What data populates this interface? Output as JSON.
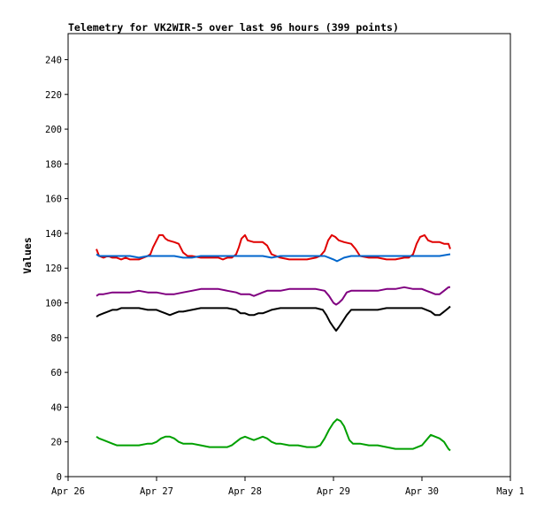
{
  "chart_data": {
    "type": "line",
    "title": "Telemetry for VK2WIR-5 over last 96 hours (399 points)",
    "xlabel": "",
    "ylabel": "Values",
    "xlim": [
      0,
      5
    ],
    "ylim": [
      0,
      255
    ],
    "x_ticks": [
      {
        "label": "Apr 26",
        "value": 0
      },
      {
        "label": "Apr 27",
        "value": 1
      },
      {
        "label": "Apr 28",
        "value": 2
      },
      {
        "label": "Apr 29",
        "value": 3
      },
      {
        "label": "Apr 30",
        "value": 4
      },
      {
        "label": "May 1",
        "value": 5
      }
    ],
    "y_ticks": [
      0,
      20,
      40,
      60,
      80,
      100,
      120,
      140,
      160,
      180,
      200,
      220,
      240
    ],
    "grid": false,
    "x_unit": "days since Apr 26 00:00",
    "series": [
      {
        "color": "#e00000",
        "points": [
          [
            0.32,
            131
          ],
          [
            0.35,
            127
          ],
          [
            0.4,
            126
          ],
          [
            0.45,
            127
          ],
          [
            0.5,
            126
          ],
          [
            0.55,
            126
          ],
          [
            0.6,
            125
          ],
          [
            0.65,
            126
          ],
          [
            0.7,
            125
          ],
          [
            0.75,
            125
          ],
          [
            0.8,
            125
          ],
          [
            0.85,
            126
          ],
          [
            0.9,
            127
          ],
          [
            0.93,
            128
          ],
          [
            0.96,
            132
          ],
          [
            1.0,
            136
          ],
          [
            1.03,
            139
          ],
          [
            1.07,
            139
          ],
          [
            1.1,
            137
          ],
          [
            1.13,
            136
          ],
          [
            1.2,
            135
          ],
          [
            1.25,
            134
          ],
          [
            1.3,
            129
          ],
          [
            1.35,
            127
          ],
          [
            1.4,
            127
          ],
          [
            1.5,
            126
          ],
          [
            1.6,
            126
          ],
          [
            1.7,
            126
          ],
          [
            1.75,
            125
          ],
          [
            1.8,
            126
          ],
          [
            1.85,
            126
          ],
          [
            1.9,
            128
          ],
          [
            1.93,
            132
          ],
          [
            1.96,
            137
          ],
          [
            2.0,
            139
          ],
          [
            2.03,
            136
          ],
          [
            2.1,
            135
          ],
          [
            2.2,
            135
          ],
          [
            2.25,
            133
          ],
          [
            2.3,
            128
          ],
          [
            2.4,
            126
          ],
          [
            2.5,
            125
          ],
          [
            2.6,
            125
          ],
          [
            2.7,
            125
          ],
          [
            2.8,
            126
          ],
          [
            2.85,
            127
          ],
          [
            2.9,
            130
          ],
          [
            2.94,
            136
          ],
          [
            2.98,
            139
          ],
          [
            3.02,
            138
          ],
          [
            3.06,
            136
          ],
          [
            3.12,
            135
          ],
          [
            3.2,
            134
          ],
          [
            3.25,
            131
          ],
          [
            3.3,
            127
          ],
          [
            3.4,
            126
          ],
          [
            3.5,
            126
          ],
          [
            3.6,
            125
          ],
          [
            3.7,
            125
          ],
          [
            3.8,
            126
          ],
          [
            3.85,
            126
          ],
          [
            3.9,
            128
          ],
          [
            3.94,
            134
          ],
          [
            3.98,
            138
          ],
          [
            4.03,
            139
          ],
          [
            4.07,
            136
          ],
          [
            4.12,
            135
          ],
          [
            4.2,
            135
          ],
          [
            4.25,
            134
          ],
          [
            4.3,
            134
          ],
          [
            4.32,
            131
          ]
        ]
      },
      {
        "color": "#0066cc",
        "points": [
          [
            0.32,
            128
          ],
          [
            0.35,
            127
          ],
          [
            0.45,
            127
          ],
          [
            0.6,
            127
          ],
          [
            0.7,
            127
          ],
          [
            0.8,
            126
          ],
          [
            0.9,
            127
          ],
          [
            1.0,
            127
          ],
          [
            1.1,
            127
          ],
          [
            1.2,
            127
          ],
          [
            1.3,
            126
          ],
          [
            1.4,
            126
          ],
          [
            1.5,
            127
          ],
          [
            1.6,
            127
          ],
          [
            1.7,
            127
          ],
          [
            1.8,
            127
          ],
          [
            1.9,
            127
          ],
          [
            2.0,
            127
          ],
          [
            2.1,
            127
          ],
          [
            2.2,
            127
          ],
          [
            2.3,
            126
          ],
          [
            2.4,
            127
          ],
          [
            2.5,
            127
          ],
          [
            2.6,
            127
          ],
          [
            2.7,
            127
          ],
          [
            2.8,
            127
          ],
          [
            2.9,
            127
          ],
          [
            2.95,
            126
          ],
          [
            3.0,
            125
          ],
          [
            3.04,
            124
          ],
          [
            3.08,
            125
          ],
          [
            3.12,
            126
          ],
          [
            3.2,
            127
          ],
          [
            3.3,
            127
          ],
          [
            3.4,
            127
          ],
          [
            3.5,
            127
          ],
          [
            3.6,
            127
          ],
          [
            3.7,
            127
          ],
          [
            3.8,
            127
          ],
          [
            3.9,
            127
          ],
          [
            4.0,
            127
          ],
          [
            4.1,
            127
          ],
          [
            4.2,
            127
          ],
          [
            4.32,
            128
          ]
        ]
      },
      {
        "color": "#800080",
        "points": [
          [
            0.32,
            104
          ],
          [
            0.35,
            105
          ],
          [
            0.4,
            105
          ],
          [
            0.5,
            106
          ],
          [
            0.6,
            106
          ],
          [
            0.7,
            106
          ],
          [
            0.8,
            107
          ],
          [
            0.9,
            106
          ],
          [
            1.0,
            106
          ],
          [
            1.1,
            105
          ],
          [
            1.2,
            105
          ],
          [
            1.3,
            106
          ],
          [
            1.4,
            107
          ],
          [
            1.5,
            108
          ],
          [
            1.6,
            108
          ],
          [
            1.7,
            108
          ],
          [
            1.8,
            107
          ],
          [
            1.9,
            106
          ],
          [
            1.95,
            105
          ],
          [
            2.0,
            105
          ],
          [
            2.05,
            105
          ],
          [
            2.1,
            104
          ],
          [
            2.15,
            105
          ],
          [
            2.2,
            106
          ],
          [
            2.25,
            107
          ],
          [
            2.3,
            107
          ],
          [
            2.4,
            107
          ],
          [
            2.5,
            108
          ],
          [
            2.6,
            108
          ],
          [
            2.7,
            108
          ],
          [
            2.8,
            108
          ],
          [
            2.9,
            107
          ],
          [
            2.95,
            104
          ],
          [
            3.0,
            100
          ],
          [
            3.03,
            99
          ],
          [
            3.06,
            100
          ],
          [
            3.1,
            102
          ],
          [
            3.15,
            106
          ],
          [
            3.2,
            107
          ],
          [
            3.3,
            107
          ],
          [
            3.4,
            107
          ],
          [
            3.5,
            107
          ],
          [
            3.6,
            108
          ],
          [
            3.7,
            108
          ],
          [
            3.8,
            109
          ],
          [
            3.9,
            108
          ],
          [
            4.0,
            108
          ],
          [
            4.05,
            107
          ],
          [
            4.1,
            106
          ],
          [
            4.15,
            105
          ],
          [
            4.2,
            105
          ],
          [
            4.25,
            107
          ],
          [
            4.3,
            109
          ],
          [
            4.32,
            109
          ]
        ]
      },
      {
        "color": "#000000",
        "points": [
          [
            0.32,
            92
          ],
          [
            0.35,
            93
          ],
          [
            0.4,
            94
          ],
          [
            0.45,
            95
          ],
          [
            0.5,
            96
          ],
          [
            0.55,
            96
          ],
          [
            0.6,
            97
          ],
          [
            0.7,
            97
          ],
          [
            0.8,
            97
          ],
          [
            0.9,
            96
          ],
          [
            1.0,
            96
          ],
          [
            1.05,
            95
          ],
          [
            1.1,
            94
          ],
          [
            1.15,
            93
          ],
          [
            1.2,
            94
          ],
          [
            1.25,
            95
          ],
          [
            1.3,
            95
          ],
          [
            1.4,
            96
          ],
          [
            1.5,
            97
          ],
          [
            1.6,
            97
          ],
          [
            1.7,
            97
          ],
          [
            1.8,
            97
          ],
          [
            1.9,
            96
          ],
          [
            1.95,
            94
          ],
          [
            2.0,
            94
          ],
          [
            2.05,
            93
          ],
          [
            2.1,
            93
          ],
          [
            2.15,
            94
          ],
          [
            2.2,
            94
          ],
          [
            2.25,
            95
          ],
          [
            2.3,
            96
          ],
          [
            2.4,
            97
          ],
          [
            2.5,
            97
          ],
          [
            2.6,
            97
          ],
          [
            2.7,
            97
          ],
          [
            2.8,
            97
          ],
          [
            2.88,
            96
          ],
          [
            2.92,
            93
          ],
          [
            2.96,
            89
          ],
          [
            3.0,
            86
          ],
          [
            3.03,
            84
          ],
          [
            3.06,
            86
          ],
          [
            3.1,
            89
          ],
          [
            3.15,
            93
          ],
          [
            3.2,
            96
          ],
          [
            3.3,
            96
          ],
          [
            3.4,
            96
          ],
          [
            3.5,
            96
          ],
          [
            3.6,
            97
          ],
          [
            3.7,
            97
          ],
          [
            3.8,
            97
          ],
          [
            3.9,
            97
          ],
          [
            4.0,
            97
          ],
          [
            4.05,
            96
          ],
          [
            4.1,
            95
          ],
          [
            4.15,
            93
          ],
          [
            4.2,
            93
          ],
          [
            4.25,
            95
          ],
          [
            4.3,
            97
          ],
          [
            4.32,
            98
          ]
        ]
      },
      {
        "color": "#00a000",
        "points": [
          [
            0.32,
            23
          ],
          [
            0.35,
            22
          ],
          [
            0.4,
            21
          ],
          [
            0.45,
            20
          ],
          [
            0.5,
            19
          ],
          [
            0.55,
            18
          ],
          [
            0.6,
            18
          ],
          [
            0.7,
            18
          ],
          [
            0.8,
            18
          ],
          [
            0.9,
            19
          ],
          [
            0.95,
            19
          ],
          [
            1.0,
            20
          ],
          [
            1.05,
            22
          ],
          [
            1.1,
            23
          ],
          [
            1.15,
            23
          ],
          [
            1.2,
            22
          ],
          [
            1.25,
            20
          ],
          [
            1.3,
            19
          ],
          [
            1.4,
            19
          ],
          [
            1.5,
            18
          ],
          [
            1.6,
            17
          ],
          [
            1.7,
            17
          ],
          [
            1.8,
            17
          ],
          [
            1.85,
            18
          ],
          [
            1.9,
            20
          ],
          [
            1.95,
            22
          ],
          [
            2.0,
            23
          ],
          [
            2.05,
            22
          ],
          [
            2.1,
            21
          ],
          [
            2.15,
            22
          ],
          [
            2.2,
            23
          ],
          [
            2.25,
            22
          ],
          [
            2.3,
            20
          ],
          [
            2.35,
            19
          ],
          [
            2.4,
            19
          ],
          [
            2.5,
            18
          ],
          [
            2.6,
            18
          ],
          [
            2.7,
            17
          ],
          [
            2.8,
            17
          ],
          [
            2.85,
            18
          ],
          [
            2.9,
            22
          ],
          [
            2.95,
            27
          ],
          [
            3.0,
            31
          ],
          [
            3.04,
            33
          ],
          [
            3.08,
            32
          ],
          [
            3.12,
            29
          ],
          [
            3.15,
            25
          ],
          [
            3.18,
            21
          ],
          [
            3.22,
            19
          ],
          [
            3.3,
            19
          ],
          [
            3.4,
            18
          ],
          [
            3.5,
            18
          ],
          [
            3.6,
            17
          ],
          [
            3.7,
            16
          ],
          [
            3.8,
            16
          ],
          [
            3.9,
            16
          ],
          [
            3.95,
            17
          ],
          [
            4.0,
            18
          ],
          [
            4.05,
            21
          ],
          [
            4.1,
            24
          ],
          [
            4.15,
            23
          ],
          [
            4.2,
            22
          ],
          [
            4.25,
            20
          ],
          [
            4.3,
            16
          ],
          [
            4.32,
            15
          ]
        ]
      }
    ]
  }
}
